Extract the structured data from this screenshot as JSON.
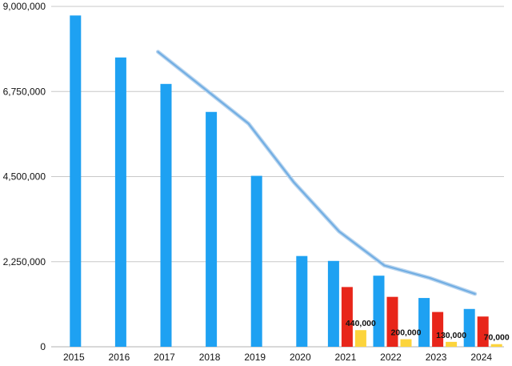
{
  "chart_data": {
    "type": "bar",
    "title": "",
    "xlabel": "",
    "ylabel": "",
    "ylim": [
      0,
      9000000
    ],
    "yticks": [
      "0",
      "2,250,000",
      "4,500,000",
      "6,750,000",
      "9,000,000"
    ],
    "ytick_values": [
      0,
      2250000,
      4500000,
      6750000,
      9000000
    ],
    "grid": true,
    "legend": "none",
    "categories": [
      "2015",
      "2016",
      "2017",
      "2018",
      "2019",
      "2020",
      "2021",
      "2022",
      "2023",
      "2024"
    ],
    "series": [
      {
        "color": "#1ea1f2",
        "values": [
          8760000,
          7650000,
          6950000,
          6210000,
          4520000,
          2400000,
          2270000,
          1880000,
          1290000,
          1000000
        ]
      },
      {
        "color": "#e8261a",
        "values": [
          null,
          null,
          null,
          null,
          null,
          null,
          1580000,
          1320000,
          920000,
          800000
        ]
      },
      {
        "color": "#fcd43c",
        "values": [
          null,
          null,
          null,
          null,
          null,
          null,
          440000,
          200000,
          130000,
          70000
        ]
      }
    ],
    "data_labels": [
      "440,000",
      "200,000",
      "130,000",
      "70,000"
    ],
    "line": {
      "color": "#72aee3",
      "x": [
        "2017",
        "2018",
        "2019",
        "2020",
        "2021",
        "2022",
        "2023",
        "2024"
      ],
      "values": [
        7800000,
        6850000,
        5900000,
        4350000,
        3050000,
        2150000,
        1820000,
        1400000
      ]
    }
  }
}
